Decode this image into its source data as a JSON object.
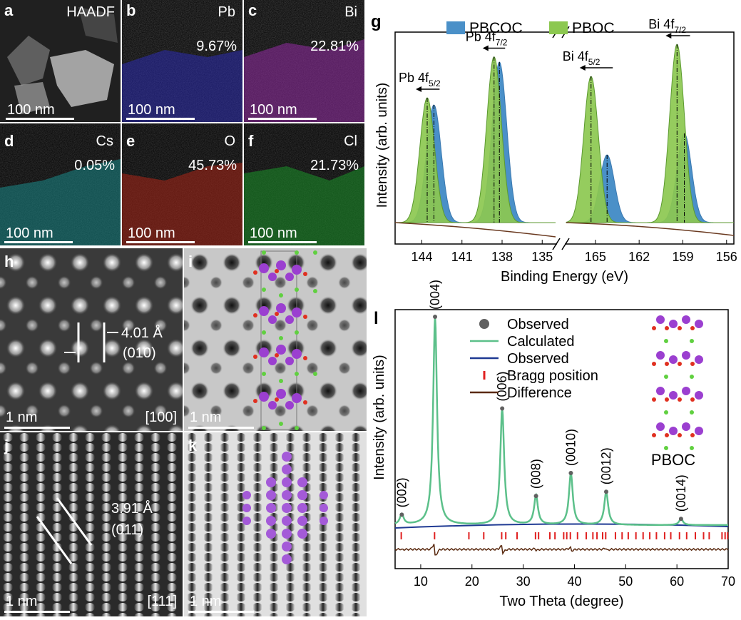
{
  "figure": {
    "panel_a": {
      "label": "a",
      "element": "HAADF",
      "scale": "100 nm"
    },
    "panel_b": {
      "label": "b",
      "element": "Pb",
      "percent": "9.67%",
      "scale": "100 nm",
      "color": "#4b4bff"
    },
    "panel_c": {
      "label": "c",
      "element": "Bi",
      "percent": "22.81%",
      "scale": "100 nm",
      "color": "#c040d0"
    },
    "panel_d": {
      "label": "d",
      "element": "Cs",
      "percent": "0.05%",
      "scale": "100 nm",
      "color": "#30d8d8"
    },
    "panel_e": {
      "label": "e",
      "element": "O",
      "percent": "45.73%",
      "scale": "100 nm",
      "color": "#e03a2a"
    },
    "panel_f": {
      "label": "f",
      "element": "Cl",
      "percent": "21.73%",
      "scale": "100 nm",
      "color": "#30c040"
    },
    "panel_h": {
      "label": "h",
      "spacing": "4.01 Å",
      "plane": "(010)",
      "scale": "1 nm",
      "zone": "[100]"
    },
    "panel_i": {
      "label": "i",
      "scale": "1 nm"
    },
    "panel_j": {
      "label": "j",
      "spacing": "3.91 Å",
      "plane": "(011)",
      "scale": "1 nm",
      "zone": "[111]"
    },
    "panel_k": {
      "label": "k",
      "scale": "1 nm"
    }
  },
  "chart_data": [
    {
      "panel": "g",
      "type": "line",
      "ylabel": "Intensity (arb. units)",
      "xlabel": "Binding Energy (eV)",
      "legend": [
        "PBCOC",
        "PBOC"
      ],
      "legend_colors": [
        "#4a90c8",
        "#8cc850"
      ],
      "x_ticks_left": [
        "144",
        "141",
        "138",
        "135"
      ],
      "x_ticks_right": [
        "165",
        "162",
        "159",
        "156"
      ],
      "xlim_left": [
        146,
        134
      ],
      "xlim_right": [
        167,
        155.5
      ],
      "peak_labels": [
        {
          "name": "Pb 4f",
          "sub": "5/2"
        },
        {
          "name": "Pb 4f",
          "sub": "7/2"
        },
        {
          "name": "Bi 4f",
          "sub": "5/2"
        },
        {
          "name": "Bi 4f",
          "sub": "7/2"
        }
      ],
      "series": [
        {
          "name": "PBCOC",
          "peaks": [
            {
              "center": 143.1,
              "height": 0.66
            },
            {
              "center": 138.2,
              "height": 0.9
            },
            {
              "center": 164.2,
              "height": 0.38
            },
            {
              "center": 158.9,
              "height": 0.5
            }
          ]
        },
        {
          "name": "PBOC",
          "peaks": [
            {
              "center": 143.6,
              "height": 0.7
            },
            {
              "center": 138.6,
              "height": 0.93
            },
            {
              "center": 165.3,
              "height": 0.82
            },
            {
              "center": 159.4,
              "height": 1.0
            }
          ]
        }
      ]
    },
    {
      "panel": "l",
      "type": "line",
      "xlabel": "Two Theta (degree)",
      "ylabel": "Intensity (arb. units)",
      "x_ticks": [
        "10",
        "20",
        "30",
        "40",
        "50",
        "60",
        "70"
      ],
      "xlim": [
        5,
        70
      ],
      "legend": [
        "Observed",
        "Calculated",
        "Observed",
        "Bragg position",
        "Difference"
      ],
      "legend_colors": [
        "#606060",
        "#5cc08a",
        "#1f3a93",
        "#e02020",
        "#5a2a10"
      ],
      "inset_label": "PBOC",
      "peaks": [
        {
          "hkl": "(002)",
          "x": 6.3,
          "y": 0.05
        },
        {
          "hkl": "(004)",
          "x": 12.8,
          "y": 1.0
        },
        {
          "hkl": "(006)",
          "x": 25.9,
          "y": 0.56
        },
        {
          "hkl": "(008)",
          "x": 32.5,
          "y": 0.14
        },
        {
          "hkl": "(0010)",
          "x": 39.3,
          "y": 0.25
        },
        {
          "hkl": "(0012)",
          "x": 46.2,
          "y": 0.16
        },
        {
          "hkl": "(0014)",
          "x": 60.8,
          "y": 0.03
        }
      ],
      "bragg_positions": [
        6.2,
        12.7,
        19.4,
        22.3,
        25.8,
        26.6,
        28.8,
        32.4,
        33.0,
        35.2,
        36.2,
        37.9,
        38.5,
        39.2,
        40.6,
        42.3,
        43.6,
        44.4,
        45.5,
        46.1,
        48.0,
        49.3,
        50.5,
        52.0,
        53.4,
        54.7,
        56.0,
        57.6,
        58.8,
        60.5,
        61.9,
        63.6,
        65.2,
        66.3,
        68.8,
        69.4,
        69.9
      ]
    }
  ]
}
